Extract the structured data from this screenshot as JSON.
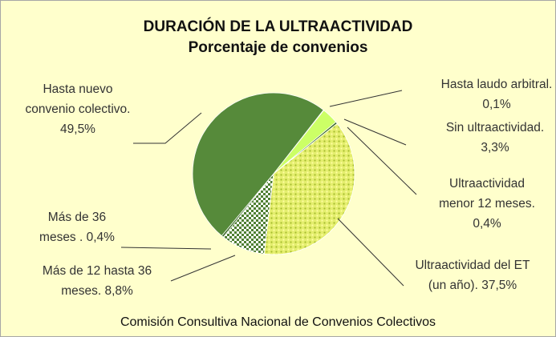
{
  "chart_data": {
    "type": "pie",
    "title": "DURACIÓN DE LA ULTRAACTIVIDAD",
    "subtitle": "Porcentaje de convenios",
    "source": "Comisión Consultiva Nacional de Convenios Colectivos",
    "categories": [
      "Hasta laudo arbitral.",
      "Sin ultraactividad.",
      "Ultraactividad menor 12 meses.",
      "Ultraactividad del ET (un año).",
      "Más de 12 hasta 36 meses.",
      "Más de 36 meses .",
      "Hasta nuevo convenio colectivo."
    ],
    "values": [
      0.1,
      3.3,
      0.4,
      37.5,
      8.8,
      0.4,
      49.5
    ],
    "value_labels": [
      "0,1%",
      "3,3%",
      "0,4%",
      "37,5%",
      "8,8%",
      "0,4%",
      "49,5%"
    ],
    "colors": [
      "#7fb24a",
      "#ccff66",
      "#3d6b28",
      "#e4ee6e",
      "#4f7f33",
      "#3d6b28",
      "#568a3a"
    ],
    "patterns": [
      "solid",
      "solid",
      "solid",
      "dots",
      "checker",
      "solid",
      "solid"
    ]
  }
}
